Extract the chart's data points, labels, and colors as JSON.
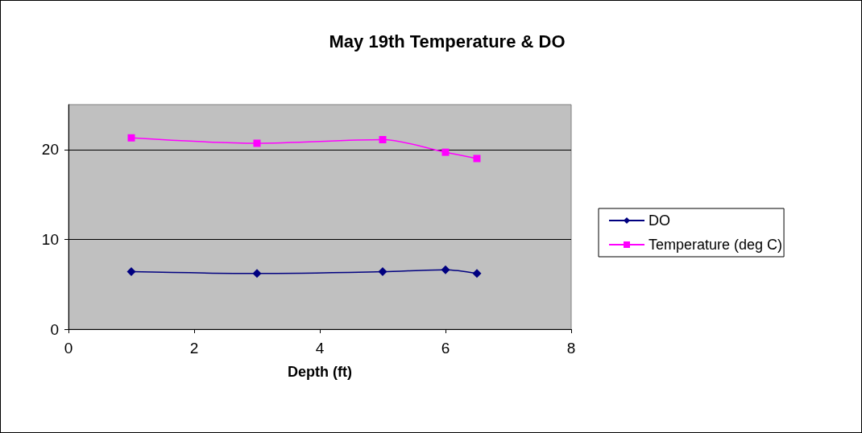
{
  "chart_data": {
    "type": "line",
    "title": "May 19th Temperature & DO",
    "xlabel": "Depth (ft)",
    "x": [
      1,
      3,
      5,
      6,
      6.5
    ],
    "xlim": [
      0,
      8
    ],
    "xticks": [
      0,
      2,
      4,
      6,
      8
    ],
    "ylim": [
      0,
      25
    ],
    "yticks": [
      0,
      10,
      20
    ],
    "grid": "y",
    "legend": "right",
    "series": [
      {
        "name": "DO",
        "color": "#000080",
        "marker": "diamond",
        "values": [
          6.4,
          6.2,
          6.4,
          6.6,
          6.2
        ]
      },
      {
        "name": "Temperature (deg C)",
        "color": "#ff00ff",
        "marker": "square",
        "values": [
          21.3,
          20.7,
          21.1,
          19.7,
          19.0
        ]
      }
    ]
  }
}
